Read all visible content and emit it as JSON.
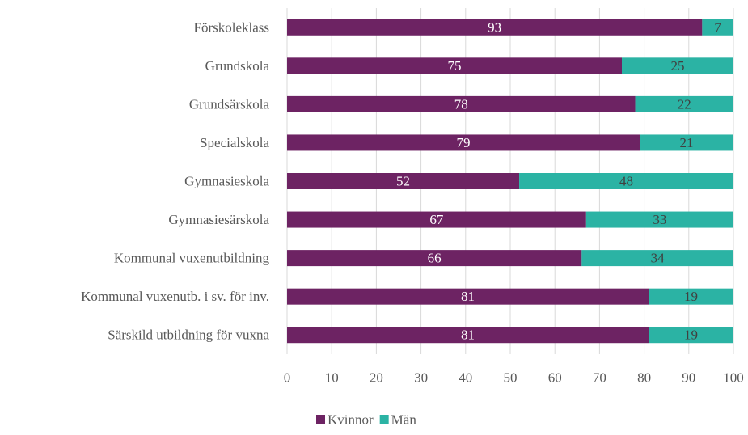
{
  "chart_data": {
    "type": "stacked-bar-horizontal",
    "categories": [
      "Förskoleklass",
      "Grundskola",
      "Grundsärskola",
      "Specialskola",
      "Gymnasieskola",
      "Gymnasiesärskola",
      "Kommunal vuxenutbildning",
      "Kommunal vuxenutb. i sv. för inv.",
      "Särskild utbildning för vuxna"
    ],
    "series": [
      {
        "name": "Kvinnor",
        "color": "#6d2363",
        "values": [
          93,
          75,
          78,
          79,
          52,
          67,
          66,
          81,
          81
        ]
      },
      {
        "name": "Män",
        "color": "#2bb3a4",
        "values": [
          7,
          25,
          22,
          21,
          48,
          33,
          34,
          19,
          19
        ]
      }
    ],
    "xlim": [
      0,
      100
    ],
    "xticks": [
      0,
      10,
      20,
      30,
      40,
      50,
      60,
      70,
      80,
      90,
      100
    ],
    "grid": true,
    "legend": "bottom"
  }
}
